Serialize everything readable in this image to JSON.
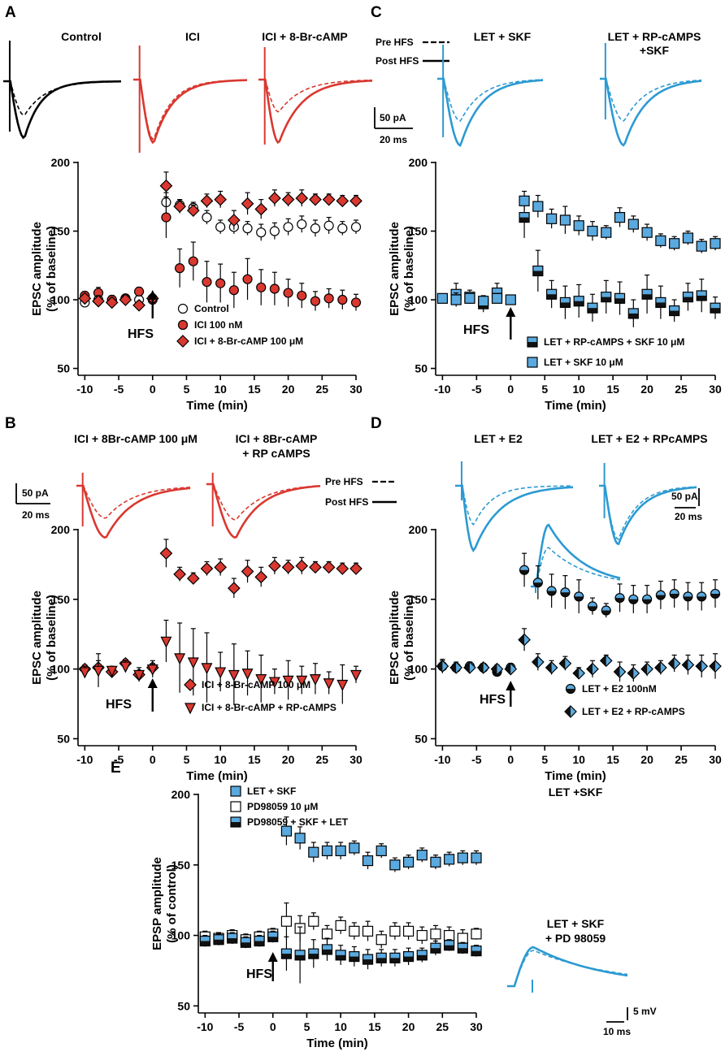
{
  "colors": {
    "red": "#D93830",
    "blue": "#2C9AD2",
    "square_blue": "#5AA9DF",
    "black": "#000000"
  },
  "panels": {
    "A": {
      "label": "A",
      "trace_titles": [
        "Control",
        "ICI",
        "ICI + 8-Br-cAMP"
      ],
      "scale_bar": {
        "current": "50 pA",
        "time": "20 ms"
      },
      "chart_data": {
        "type": "scatter",
        "xlabel": "Time (min)",
        "ylabel": [
          "EPSC amplitude",
          "(% of baseline)"
        ],
        "xlim": [
          -11,
          30
        ],
        "ylim": [
          45,
          200
        ],
        "xticks": [
          -10,
          -5,
          0,
          5,
          10,
          15,
          20,
          25,
          30
        ],
        "yticks": [
          50,
          100,
          150,
          200
        ],
        "annotation": "HFS",
        "series": [
          {
            "name": "Control",
            "marker": "circle-open",
            "x": [
              -10,
              -8,
              -6,
              -4,
              -2,
              0,
              2,
              4,
              6,
              8,
              10,
              12,
              14,
              16,
              18,
              20,
              22,
              24,
              26,
              28,
              30
            ],
            "y": [
              98,
              100,
              100,
              101,
              100,
              101,
              171,
              169,
              167,
              160,
              153,
              153,
              152,
              149,
              150,
              153,
              155,
              152,
              154,
              152,
              153
            ],
            "err": [
              3,
              4,
              3,
              3,
              3,
              3,
              7,
              4,
              4,
              5,
              5,
              5,
              5,
              6,
              6,
              6,
              6,
              6,
              6,
              5,
              5
            ]
          },
          {
            "name": "ICI 100 nM",
            "marker": "circle-red",
            "x": [
              -10,
              -8,
              -6,
              -4,
              -2,
              0,
              2,
              4,
              6,
              8,
              10,
              12,
              14,
              16,
              18,
              20,
              22,
              24,
              26,
              28,
              30
            ],
            "y": [
              103,
              105,
              100,
              101,
              106,
              100,
              160,
              123,
              128,
              113,
              112,
              107,
              115,
              109,
              108,
              105,
              103,
              99,
              101,
              100,
              98
            ],
            "err": [
              3,
              4,
              3,
              3,
              3,
              3,
              15,
              14,
              14,
              15,
              14,
              13,
              15,
              13,
              12,
              10,
              9,
              7,
              7,
              7,
              6
            ]
          },
          {
            "name": "ICI + 8-Br-cAMP 100 μM",
            "marker": "diamond-red",
            "x": [
              -10,
              -8,
              -6,
              -4,
              -2,
              0,
              2,
              4,
              6,
              8,
              10,
              12,
              14,
              16,
              18,
              20,
              22,
              24,
              26,
              28,
              30
            ],
            "y": [
              101,
              99,
              98,
              100,
              96,
              101,
              183,
              168,
              165,
              172,
              173,
              158,
              170,
              166,
              174,
              173,
              174,
              173,
              173,
              172,
              172
            ],
            "err": [
              3,
              4,
              3,
              3,
              3,
              3,
              10,
              5,
              4,
              5,
              6,
              7,
              8,
              7,
              6,
              5,
              6,
              4,
              4,
              4,
              4
            ]
          }
        ]
      }
    },
    "B": {
      "label": "B",
      "trace_titles": [
        "ICI + 8Br-cAMP 100 μM",
        "ICI + 8Br-cAMP",
        "+ RP cAMPS"
      ],
      "scale_bar": {
        "current": "50 pA",
        "time": "20 ms"
      },
      "trace_legend": {
        "pre": "Pre HFS",
        "post": "Post HFS"
      },
      "chart_data": {
        "type": "scatter",
        "xlabel": "Time (min)",
        "ylabel": [
          "EPSC amplitude",
          "(% of baseline)"
        ],
        "xlim": [
          -11,
          30
        ],
        "ylim": [
          45,
          200
        ],
        "xticks": [
          -10,
          -5,
          0,
          5,
          10,
          15,
          20,
          25,
          30
        ],
        "yticks": [
          50,
          100,
          150,
          200
        ],
        "annotation": "HFS",
        "series": [
          {
            "name": "ICI + 8-Br-cAMP 100 μM",
            "marker": "diamond-red",
            "x": [
              -10,
              -8,
              -6,
              -4,
              -2,
              0,
              2,
              4,
              6,
              8,
              10,
              12,
              14,
              16,
              18,
              20,
              22,
              24,
              26,
              28,
              30
            ],
            "y": [
              100,
              101,
              98,
              104,
              96,
              101,
              183,
              168,
              165,
              172,
              173,
              158,
              170,
              166,
              174,
              173,
              174,
              173,
              173,
              172,
              172
            ],
            "err": [
              3,
              5,
              3,
              3,
              3,
              3,
              10,
              5,
              4,
              5,
              6,
              7,
              8,
              7,
              6,
              5,
              6,
              4,
              4,
              4,
              4
            ]
          },
          {
            "name": "ICI + 8-Br-cAMP + RP-cAMPS",
            "marker": "triangle-red",
            "x": [
              -10,
              -8,
              -6,
              -4,
              -2,
              0,
              2,
              4,
              6,
              8,
              10,
              12,
              14,
              16,
              18,
              20,
              22,
              24,
              26,
              28,
              30
            ],
            "y": [
              98,
              99,
              99,
              102,
              96,
              100,
              120,
              108,
              105,
              101,
              98,
              96,
              97,
              93,
              91,
              92,
              92,
              93,
              90,
              89,
              96
            ],
            "err": [
              4,
              12,
              3,
              4,
              5,
              6,
              15,
              25,
              24,
              25,
              14,
              22,
              16,
              17,
              9,
              14,
              10,
              11,
              8,
              14,
              6
            ]
          }
        ]
      }
    },
    "C": {
      "label": "C",
      "trace_titles": [
        "LET + SKF",
        "LET + RP-cAMPS",
        "+SKF"
      ],
      "scale_bar": {
        "current": "50 pA",
        "time": "20 ms"
      },
      "trace_legend": {
        "pre": "Pre HFS",
        "post": "Post HFS"
      },
      "chart_data": {
        "type": "scatter",
        "xlabel": "Time (min)",
        "ylabel": [
          "EPSC amplitude",
          "(% of baseline)"
        ],
        "xlim": [
          -11,
          30
        ],
        "ylim": [
          45,
          200
        ],
        "xticks": [
          -10,
          -5,
          0,
          5,
          10,
          15,
          20,
          25,
          30
        ],
        "yticks": [
          50,
          100,
          150,
          200
        ],
        "annotation": "HFS",
        "series": [
          {
            "name": "LET + RP-cAMPS + SKF 10 μM",
            "marker": "square-half",
            "x": [
              -8,
              -6,
              -4,
              -2,
              2,
              4,
              6,
              8,
              10,
              12,
              14,
              16,
              18,
              20,
              22,
              24,
              26,
              28,
              30
            ],
            "y": [
              104,
              102,
              97,
              105,
              160,
              121,
              104,
              98,
              99,
              94,
              102,
              101,
              90,
              104,
              98,
              92,
              102,
              103,
              94
            ],
            "err": [
              8,
              5,
              6,
              7,
              15,
              15,
              10,
              12,
              12,
              10,
              12,
              12,
              10,
              14,
              12,
              8,
              10,
              12,
              8
            ]
          },
          {
            "name": "LET + SKF 10 μM",
            "marker": "square-blue",
            "x": [
              -10,
              -8,
              -6,
              -4,
              -2,
              0,
              2,
              4,
              6,
              8,
              10,
              12,
              14,
              16,
              18,
              20,
              22,
              24,
              26,
              28,
              30
            ],
            "y": [
              101,
              100,
              101,
              99,
              101,
              100,
              172,
              168,
              159,
              158,
              154,
              150,
              149,
              160,
              155,
              149,
              143,
              141,
              145,
              139,
              141
            ],
            "err": [
              3,
              5,
              3,
              3,
              3,
              3,
              7,
              8,
              7,
              10,
              7,
              7,
              5,
              7,
              6,
              6,
              5,
              5,
              5,
              5,
              5
            ]
          }
        ]
      }
    },
    "D": {
      "label": "D",
      "trace_titles": [
        "LET + E2",
        "LET + E2 + RPcAMPS"
      ],
      "scale_bar": {
        "current": "50 pA",
        "time": "20 ms"
      },
      "chart_data": {
        "type": "scatter",
        "xlabel": "Time (min)",
        "ylabel": [
          "EPSC amplitude",
          "(% of baseline)"
        ],
        "xlim": [
          -11,
          30
        ],
        "ylim": [
          45,
          200
        ],
        "xticks": [
          -10,
          -5,
          0,
          5,
          10,
          15,
          20,
          25,
          30
        ],
        "yticks": [
          50,
          100,
          150,
          200
        ],
        "annotation": "HFS",
        "series": [
          {
            "name": "LET + E2 100nM",
            "marker": "circle-half",
            "x": [
              -10,
              -8,
              -6,
              -4,
              -2,
              0,
              2,
              4,
              6,
              8,
              10,
              12,
              14,
              16,
              18,
              20,
              22,
              24,
              26,
              28,
              30
            ],
            "y": [
              102,
              101,
              102,
              101,
              98,
              101,
              171,
              162,
              156,
              155,
              152,
              145,
              142,
              151,
              150,
              150,
              153,
              154,
              152,
              152,
              154
            ],
            "err": [
              4,
              3,
              3,
              3,
              3,
              3,
              12,
              12,
              12,
              12,
              12,
              6,
              5,
              10,
              10,
              10,
              10,
              10,
              10,
              10,
              10
            ]
          },
          {
            "name": "LET + E2 + RP-cAMPS",
            "marker": "diamond-half",
            "x": [
              -10,
              -8,
              -6,
              -4,
              -2,
              0,
              2,
              4,
              6,
              8,
              10,
              12,
              14,
              16,
              18,
              20,
              22,
              24,
              26,
              28,
              30
            ],
            "y": [
              102,
              101,
              101,
              101,
              100,
              100,
              121,
              105,
              101,
              104,
              97,
              100,
              106,
              98,
              97,
              100,
              101,
              104,
              103,
              102,
              102
            ],
            "err": [
              5,
              4,
              4,
              3,
              3,
              3,
              8,
              6,
              5,
              5,
              4,
              6,
              4,
              7,
              6,
              5,
              5,
              6,
              7,
              8,
              9
            ]
          }
        ]
      }
    },
    "E": {
      "label": "E",
      "trace_titles": [
        "LET +SKF",
        "LET + SKF",
        "+ PD 98059"
      ],
      "scale_bar": {
        "voltage": "5 mV",
        "time": "10 ms"
      },
      "chart_data": {
        "type": "scatter",
        "xlabel": "Time (min)",
        "ylabel": [
          "EPSP amplitude",
          "(% of control)"
        ],
        "xlim": [
          -11,
          30
        ],
        "ylim": [
          45,
          200
        ],
        "xticks": [
          -10,
          -5,
          0,
          5,
          10,
          15,
          20,
          25,
          30
        ],
        "yticks": [
          50,
          100,
          150,
          200
        ],
        "annotation": "HFS",
        "series": [
          {
            "name": "LET + SKF",
            "marker": "square-blue",
            "x": [
              2,
              4,
              6,
              8,
              10,
              12,
              14,
              16,
              18,
              20,
              22,
              24,
              26,
              28,
              30
            ],
            "y": [
              174,
              169,
              159,
              160,
              160,
              162,
              153,
              160,
              150,
              152,
              157,
              152,
              154,
              155,
              155
            ],
            "err": [
              10,
              8,
              7,
              6,
              6,
              5,
              6,
              5,
              5,
              5,
              5,
              5,
              5,
              5,
              5
            ]
          },
          {
            "name": "PD98059 10 μM",
            "marker": "square-open",
            "x": [
              -10,
              -8,
              -6,
              -4,
              -2,
              0,
              2,
              4,
              6,
              8,
              10,
              12,
              14,
              16,
              18,
              20,
              22,
              24,
              26,
              28,
              30
            ],
            "y": [
              99,
              98,
              100,
              97,
              99,
              101,
              110,
              105,
              110,
              101,
              107,
              103,
              103,
              97,
              103,
              103,
              100,
              101,
              100,
              98,
              101
            ],
            "err": [
              4,
              4,
              4,
              4,
              4,
              4,
              13,
              9,
              6,
              6,
              6,
              6,
              7,
              6,
              6,
              6,
              6,
              6,
              6,
              6,
              4
            ]
          },
          {
            "name": "PD98059 + SKF + LET",
            "marker": "square-half",
            "x": [
              -10,
              -8,
              -6,
              -4,
              -2,
              0,
              2,
              4,
              6,
              8,
              10,
              12,
              14,
              16,
              18,
              20,
              22,
              24,
              26,
              28,
              30
            ],
            "y": [
              96,
              97,
              98,
              95,
              96,
              99,
              87,
              86,
              87,
              90,
              86,
              85,
              83,
              84,
              84,
              85,
              86,
              91,
              93,
              91,
              89
            ],
            "err": [
              4,
              4,
              4,
              4,
              4,
              4,
              12,
              20,
              10,
              8,
              7,
              7,
              7,
              6,
              6,
              6,
              5,
              5,
              4,
              4,
              4
            ]
          }
        ]
      }
    }
  }
}
